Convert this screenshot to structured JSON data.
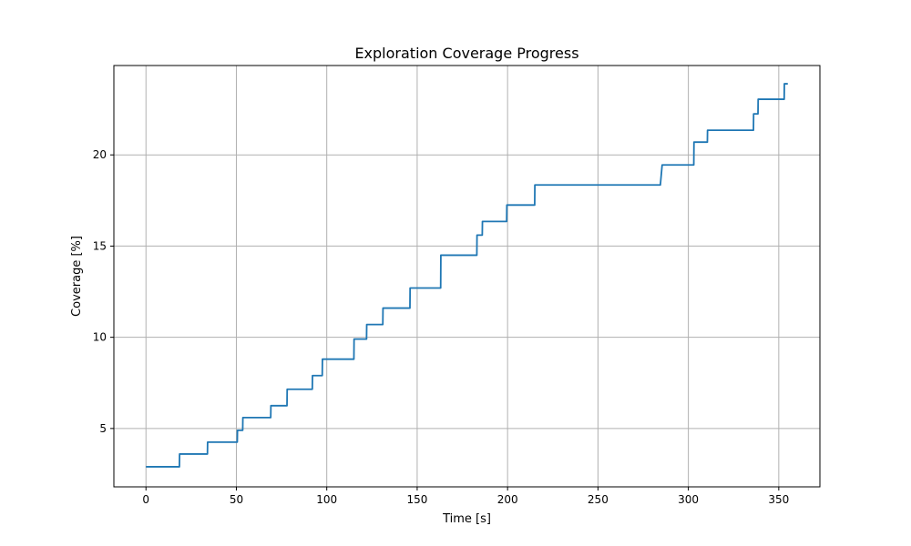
{
  "chart_data": {
    "type": "line",
    "title": "Exploration Coverage Progress",
    "xlabel": "Time [s]",
    "ylabel": "Coverage [%]",
    "xlim": [
      -17.75,
      372.75
    ],
    "ylim": [
      1.8,
      24.9
    ],
    "xticks": [
      0,
      50,
      100,
      150,
      200,
      250,
      300,
      350
    ],
    "yticks": [
      5,
      10,
      15,
      20
    ],
    "grid": true,
    "line_color": "#1f77b4",
    "series": [
      {
        "x": [
          0,
          18.5,
          18.6,
          34,
          34.1,
          50.5,
          50.6,
          53.5,
          53.6,
          69,
          69.1,
          78,
          78.1,
          92,
          92.1,
          97.5,
          97.6,
          115,
          115.1,
          122,
          122.1,
          131,
          131.1,
          146,
          146.1,
          163,
          163.1,
          183,
          183.1,
          186,
          186.1,
          199.5,
          199.6,
          215,
          215.1,
          284.5,
          285.5,
          303,
          303.1,
          310.5,
          310.6,
          336,
          336.1,
          338.5,
          338.6,
          353,
          353.1,
          355
        ],
        "y": [
          2.9,
          2.9,
          3.6,
          3.6,
          4.25,
          4.25,
          4.9,
          4.9,
          5.6,
          5.6,
          6.25,
          6.25,
          7.15,
          7.15,
          7.9,
          7.9,
          8.8,
          8.8,
          9.9,
          9.9,
          10.7,
          10.7,
          11.6,
          11.6,
          12.7,
          12.7,
          14.5,
          14.5,
          15.6,
          15.6,
          16.35,
          16.35,
          17.25,
          17.25,
          18.35,
          18.35,
          19.45,
          19.45,
          20.7,
          20.7,
          21.35,
          21.35,
          22.25,
          22.25,
          23.05,
          23.05,
          23.9,
          23.9
        ]
      }
    ]
  }
}
